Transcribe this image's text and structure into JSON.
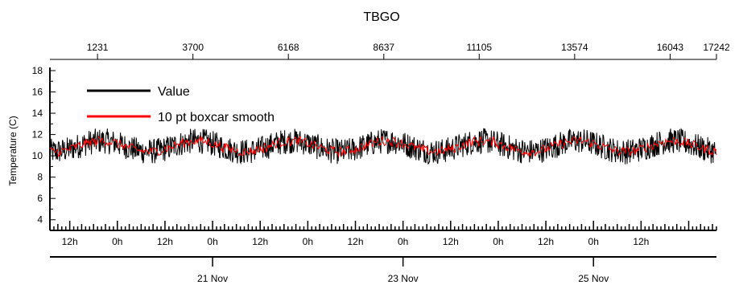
{
  "chart_data": {
    "type": "line",
    "title": "TBGO",
    "ylabel": "Temperature (C)",
    "xlabel": "",
    "ylim": [
      3,
      18.3
    ],
    "y_ticks": [
      4,
      6,
      8,
      10,
      12,
      14,
      16,
      18
    ],
    "top_axis": {
      "range": [
        0,
        17242
      ],
      "ticks": [
        "1231",
        "3700",
        "6168",
        "8637",
        "11105",
        "13574",
        "16043",
        "17242"
      ]
    },
    "bottom_axis": {
      "start": "19 Nov 07:00",
      "end": "26 Nov 07:00",
      "hour_ticks": [
        "12h",
        "0h",
        "12h",
        "0h",
        "12h",
        "0h",
        "12h",
        "0h",
        "12h",
        "0h",
        "12h",
        "0h",
        "12h"
      ],
      "day_ticks": [
        "21 Nov",
        "23 Nov",
        "25 Nov"
      ]
    },
    "legend_position": "top-left",
    "series": [
      {
        "name": "Value",
        "color": "#000000",
        "mean": 10.9,
        "diurnal_amplitude": 0.5,
        "noise_band": 1.2,
        "max": 12.9,
        "min": 9.2
      },
      {
        "name": "10 pt boxcar smooth",
        "color": "#ff0000",
        "mean": 10.9,
        "diurnal_amplitude": 0.5,
        "noise_band": 0.45,
        "max": 12.0,
        "min": 10.1
      }
    ]
  }
}
